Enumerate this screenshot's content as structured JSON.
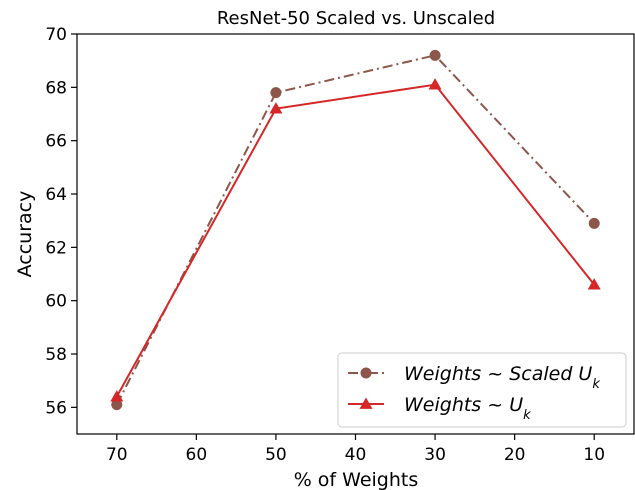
{
  "chart_data": {
    "type": "line",
    "title": "ResNet-50 Scaled vs. Unscaled",
    "xlabel": "% of Weights",
    "ylabel": "Accuracy",
    "x": [
      70,
      50,
      30,
      10
    ],
    "xlim": [
      75,
      5
    ],
    "xticks": [
      70,
      60,
      50,
      40,
      30,
      20,
      10
    ],
    "ylim": [
      55,
      70
    ],
    "yticks": [
      56,
      58,
      60,
      62,
      64,
      66,
      68,
      70
    ],
    "legend_position": "lower-right",
    "series": [
      {
        "name": "Weights ~ Scaled U_k",
        "values": [
          56.1,
          67.8,
          69.2,
          62.9
        ],
        "color": "#8c564b",
        "linestyle": "dashdot",
        "marker": "circle"
      },
      {
        "name": "Weights ~ U_k",
        "values": [
          56.4,
          67.2,
          68.1,
          60.6
        ],
        "color": "#d62728",
        "linestyle": "solid",
        "marker": "triangle"
      }
    ]
  }
}
